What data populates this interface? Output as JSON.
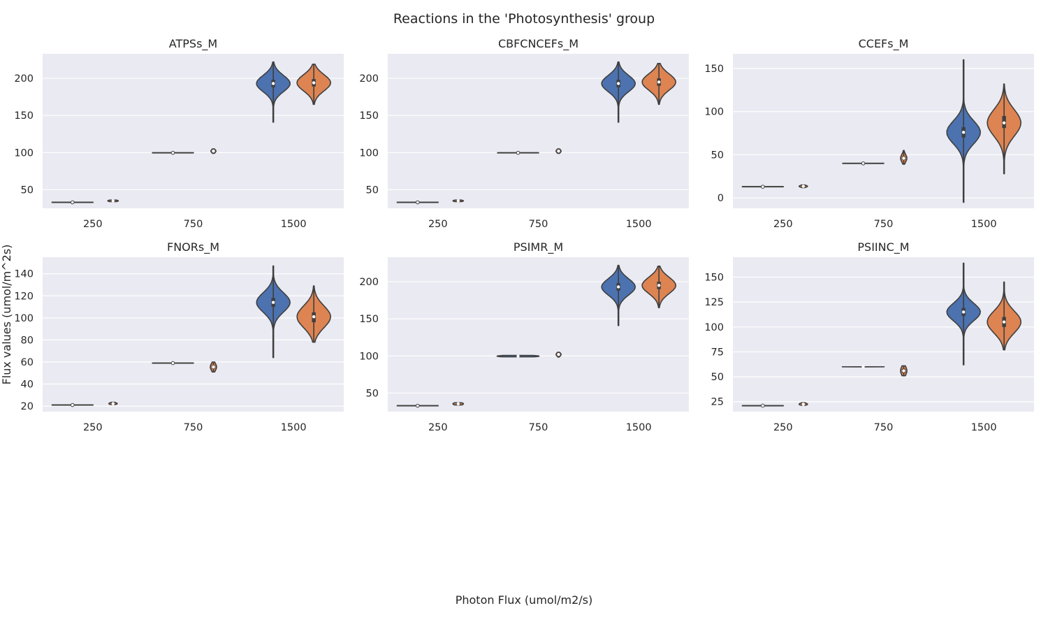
{
  "figure": {
    "title": "Reactions in the 'Photosynthesis' group",
    "xlabel": "Photon Flux (umol/m2/s)",
    "ylabel": "Flux values (umol/m^2s)"
  },
  "colors": {
    "background": "#eaeaf2",
    "grid": "#ffffff",
    "series_1": "#4c72b0",
    "series_2": "#dd8452",
    "outline": "#3f3f3f",
    "text": "#262626"
  },
  "chart_data": [
    {
      "type": "violin",
      "title": "ATPSs_M",
      "categories": [
        "250",
        "750",
        "1500"
      ],
      "ylim": [
        25,
        233
      ],
      "yticks": [
        50,
        100,
        150,
        200
      ],
      "grid": true,
      "series": [
        {
          "group": [
            {
              "median": 33,
              "q1": 33,
              "q3": 33,
              "min": 33,
              "max": 33,
              "width": 1.0
            },
            {
              "median": 99.7,
              "q1": 99.7,
              "q3": 99.7,
              "min": 99.7,
              "max": 99.7,
              "width": 1.0
            },
            {
              "median": 193,
              "q1": 188,
              "q3": 198,
              "min": 141,
              "max": 222,
              "width": 0.8
            }
          ]
        },
        {
          "group": [
            {
              "median": 35,
              "q1": 34.5,
              "q3": 35.5,
              "min": 34,
              "max": 36,
              "width": 0.25
            },
            {
              "median": 102,
              "q1": 101,
              "q3": 103,
              "min": 99,
              "max": 105,
              "width": 0.12
            },
            {
              "median": 194,
              "q1": 189,
              "q3": 199,
              "min": 165,
              "max": 219,
              "width": 0.8
            }
          ]
        }
      ]
    },
    {
      "type": "violin",
      "title": "CBFCNCEFs_M",
      "categories": [
        "250",
        "750",
        "1500"
      ],
      "ylim": [
        25,
        233
      ],
      "yticks": [
        50,
        100,
        150,
        200
      ],
      "grid": true,
      "series": [
        {
          "group": [
            {
              "median": 33,
              "q1": 33,
              "q3": 33,
              "min": 33,
              "max": 33,
              "width": 1.0
            },
            {
              "median": 99.7,
              "q1": 99.7,
              "q3": 99.7,
              "min": 99.7,
              "max": 99.7,
              "width": 1.0
            },
            {
              "median": 193,
              "q1": 188,
              "q3": 198,
              "min": 141,
              "max": 222,
              "width": 0.8
            }
          ]
        },
        {
          "group": [
            {
              "median": 35,
              "q1": 34.5,
              "q3": 35.5,
              "min": 34,
              "max": 36,
              "width": 0.25
            },
            {
              "median": 102,
              "q1": 101,
              "q3": 103,
              "min": 99,
              "max": 105,
              "width": 0.12
            },
            {
              "median": 195,
              "q1": 190,
              "q3": 200,
              "min": 165,
              "max": 220,
              "width": 0.8
            }
          ]
        }
      ]
    },
    {
      "type": "violin",
      "title": "CCEFs_M",
      "categories": [
        "250",
        "750",
        "1500"
      ],
      "ylim": [
        -12,
        167
      ],
      "yticks": [
        0,
        50,
        100,
        150
      ],
      "grid": true,
      "series": [
        {
          "group": [
            {
              "median": 13,
              "q1": 13,
              "q3": 13,
              "min": 13,
              "max": 13,
              "width": 1.0
            },
            {
              "median": 40,
              "q1": 40,
              "q3": 40,
              "min": 40,
              "max": 40,
              "width": 1.0
            },
            {
              "median": 76,
              "q1": 70,
              "q3": 82,
              "min": -5,
              "max": 160,
              "width": 0.8
            }
          ]
        },
        {
          "group": [
            {
              "median": 13.5,
              "q1": 13,
              "q3": 14,
              "min": 12,
              "max": 15,
              "width": 0.2
            },
            {
              "median": 46,
              "q1": 44,
              "q3": 48,
              "min": 39,
              "max": 55,
              "width": 0.15
            },
            {
              "median": 87,
              "q1": 81,
              "q3": 95,
              "min": 28,
              "max": 132,
              "width": 0.8
            }
          ]
        }
      ]
    },
    {
      "type": "violin",
      "title": "FNORs_M",
      "categories": [
        "250",
        "750",
        "1500"
      ],
      "ylim": [
        15,
        155
      ],
      "yticks": [
        20,
        40,
        60,
        80,
        100,
        120,
        140
      ],
      "grid": true,
      "series": [
        {
          "group": [
            {
              "median": 21,
              "q1": 21,
              "q3": 21,
              "min": 21,
              "max": 21,
              "width": 1.0
            },
            {
              "median": 59,
              "q1": 59,
              "q3": 59,
              "min": 59,
              "max": 59,
              "width": 1.0
            },
            {
              "median": 114,
              "q1": 110,
              "q3": 118,
              "min": 64,
              "max": 147,
              "width": 0.8
            }
          ]
        },
        {
          "group": [
            {
              "median": 22.3,
              "q1": 22,
              "q3": 22.8,
              "min": 21.5,
              "max": 23.5,
              "width": 0.2
            },
            {
              "median": 55.5,
              "q1": 54,
              "q3": 57,
              "min": 51,
              "max": 60,
              "width": 0.15
            },
            {
              "median": 101,
              "q1": 96,
              "q3": 105,
              "min": 78,
              "max": 129,
              "width": 0.8
            }
          ]
        }
      ]
    },
    {
      "type": "violin",
      "title": "PSIMR_M",
      "categories": [
        "250",
        "750",
        "1500"
      ],
      "ylim": [
        25,
        233
      ],
      "yticks": [
        50,
        100,
        150,
        200
      ],
      "grid": true,
      "series": [
        {
          "group": [
            {
              "median": 33,
              "q1": 33,
              "q3": 33,
              "min": 33,
              "max": 33,
              "width": 1.0
            },
            {
              "median": 99.7,
              "q1": 99.2,
              "q3": 100.3,
              "min": 98.8,
              "max": 100.8,
              "width": 1.0
            },
            {
              "median": 193,
              "q1": 188,
              "q3": 198,
              "min": 141,
              "max": 222,
              "width": 0.8
            }
          ]
        },
        {
          "group": [
            {
              "median": 35.5,
              "q1": 34.7,
              "q3": 36.3,
              "min": 34,
              "max": 37,
              "width": 0.25
            },
            {
              "median": 102,
              "q1": 101,
              "q3": 103,
              "min": 98.5,
              "max": 105,
              "width": 0.12
            },
            {
              "median": 195,
              "q1": 190,
              "q3": 200,
              "min": 165,
              "max": 221,
              "width": 0.8
            }
          ]
        }
      ]
    },
    {
      "type": "violin",
      "title": "PSIINC_M",
      "categories": [
        "250",
        "750",
        "1500"
      ],
      "ylim": [
        15,
        170
      ],
      "yticks": [
        25,
        50,
        75,
        100,
        125,
        150
      ],
      "grid": true,
      "series": [
        {
          "group": [
            {
              "median": 21,
              "q1": 21,
              "q3": 21,
              "min": 21,
              "max": 21,
              "width": 1.0
            },
            {
              "median": 60,
              "q1": 60,
              "q3": 60,
              "min": 59.5,
              "max": 60.5,
              "width": 1.0
            },
            {
              "median": 115,
              "q1": 111,
              "q3": 119,
              "min": 62,
              "max": 164,
              "width": 0.8
            }
          ]
        },
        {
          "group": [
            {
              "median": 22.5,
              "q1": 22,
              "q3": 23,
              "min": 21.5,
              "max": 24,
              "width": 0.2
            },
            {
              "median": 56,
              "q1": 54,
              "q3": 58,
              "min": 51,
              "max": 61,
              "width": 0.15
            },
            {
              "median": 105,
              "q1": 100,
              "q3": 110,
              "min": 77,
              "max": 145,
              "width": 0.8
            }
          ]
        }
      ]
    }
  ]
}
